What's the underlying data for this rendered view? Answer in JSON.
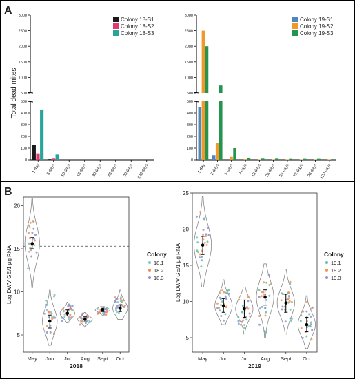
{
  "figure": {
    "panel_a_label": "A",
    "panel_b_label": "B"
  },
  "colors": {
    "c18": [
      "#1a1a1a",
      "#e0386f",
      "#2aa49a"
    ],
    "c19": [
      "#4f86c0",
      "#f0982a",
      "#249451"
    ],
    "c2018": [
      "#7ec9c0",
      "#f08a5d",
      "#8e91c9"
    ],
    "c2019": [
      "#63c1a6",
      "#f0935a",
      "#8e91c9"
    ]
  },
  "chart_data": [
    {
      "type": "bar",
      "panel": "A",
      "categories": [
        "1 day",
        "5 days",
        "10 days",
        "15 days",
        "30 days",
        "45 days",
        "90 days",
        "120 days"
      ],
      "series": [
        {
          "name": "Colony 18-S1",
          "values": [
            125,
            5,
            0,
            0,
            0,
            0,
            0,
            0
          ]
        },
        {
          "name": "Colony 18-S2",
          "values": [
            55,
            10,
            0,
            0,
            0,
            0,
            0,
            0
          ]
        },
        {
          "name": "Colony 18-S3",
          "values": [
            430,
            45,
            0,
            0,
            0,
            0,
            0,
            0
          ]
        }
      ],
      "ylabel": "Total dead mites",
      "yticks_lower": [
        0,
        100,
        200,
        300,
        400,
        500
      ],
      "yticks_upper": [
        500,
        1000,
        1500,
        2000,
        2500,
        3000
      ],
      "ybreak": [
        500,
        500
      ],
      "legend": "top-right"
    },
    {
      "type": "bar",
      "panel": "A",
      "categories": [
        "1 day",
        "2 days",
        "5 days",
        "9 days",
        "15 days",
        "26 days",
        "55 days",
        "71 days",
        "96 days",
        "120 days"
      ],
      "series": [
        {
          "name": "Colony 19-S1",
          "values": [
            450,
            40,
            0,
            0,
            0,
            0,
            0,
            0,
            0,
            0
          ]
        },
        {
          "name": "Colony 19-S2",
          "values": [
            2500,
            145,
            25,
            5,
            3,
            3,
            3,
            3,
            3,
            3
          ]
        },
        {
          "name": "Colony 19-S3",
          "values": [
            2000,
            740,
            100,
            15,
            10,
            10,
            8,
            8,
            8,
            5
          ]
        }
      ],
      "yticks_lower": [
        0,
        100,
        200,
        300,
        400,
        500
      ],
      "yticks_upper": [
        500,
        1000,
        1500,
        2000,
        2500,
        3000
      ],
      "ybreak": [
        500,
        500
      ],
      "legend": "top-right"
    },
    {
      "type": "scatter",
      "subtype": "violin-jitter",
      "panel": "B",
      "categories": [
        "May",
        "Jun",
        "Jul",
        "Aug",
        "Sept",
        "Oct"
      ],
      "xlabel": "2018",
      "ylabel": "Log DWV GE/1 µg RNA",
      "ylim": [
        3,
        21
      ],
      "yticks": [
        5,
        10,
        15,
        20
      ],
      "reference_line": 15.3,
      "legend_title": "Colony",
      "legend_items": [
        "18.1",
        "18.2",
        "18.3"
      ],
      "summary": [
        {
          "mean": 15.6,
          "ci": [
            15.0,
            16.3
          ],
          "min": 10.5,
          "max": 20.8
        },
        {
          "mean": 6.6,
          "ci": [
            5.8,
            7.3
          ],
          "min": 3.8,
          "max": 10.2
        },
        {
          "mean": 7.5,
          "ci": [
            7.2,
            7.9
          ],
          "min": 6.4,
          "max": 8.8
        },
        {
          "mean": 6.8,
          "ci": [
            6.5,
            7.1
          ],
          "min": 5.9,
          "max": 7.6
        },
        {
          "mean": 7.9,
          "ci": [
            7.7,
            8.1
          ],
          "min": 7.3,
          "max": 8.3
        },
        {
          "mean": 8.1,
          "ci": [
            7.7,
            8.5
          ],
          "min": 6.8,
          "max": 10.2
        }
      ],
      "legend": "right"
    },
    {
      "type": "scatter",
      "subtype": "violin-jitter",
      "panel": "B",
      "categories": [
        "May",
        "Jun",
        "Jul",
        "Aug",
        "Sept",
        "Oct"
      ],
      "xlabel": "2019",
      "ylabel": "Log DWV GE/1 µg RNA",
      "ylim": [
        3,
        25
      ],
      "yticks": [
        5,
        10,
        15,
        20,
        25
      ],
      "reference_line": 16.3,
      "legend_title": "Colony",
      "legend_items": [
        "19.1",
        "19.2",
        "19.3"
      ],
      "summary": [
        {
          "mean": 17.8,
          "ci": [
            16.5,
            19.0
          ],
          "min": 12.0,
          "max": 24.5
        },
        {
          "mean": 9.4,
          "ci": [
            8.5,
            10.4
          ],
          "min": 6.8,
          "max": 13.0
        },
        {
          "mean": 9.0,
          "ci": [
            7.8,
            10.2
          ],
          "min": 5.5,
          "max": 12.0
        },
        {
          "mean": 10.6,
          "ci": [
            9.5,
            11.6
          ],
          "min": 5.0,
          "max": 15.2
        },
        {
          "mean": 9.8,
          "ci": [
            8.5,
            11.0
          ],
          "min": 5.5,
          "max": 14.5
        },
        {
          "mean": 6.8,
          "ci": [
            5.8,
            7.8
          ],
          "min": 3.5,
          "max": 10.8
        }
      ],
      "legend": "right"
    }
  ]
}
